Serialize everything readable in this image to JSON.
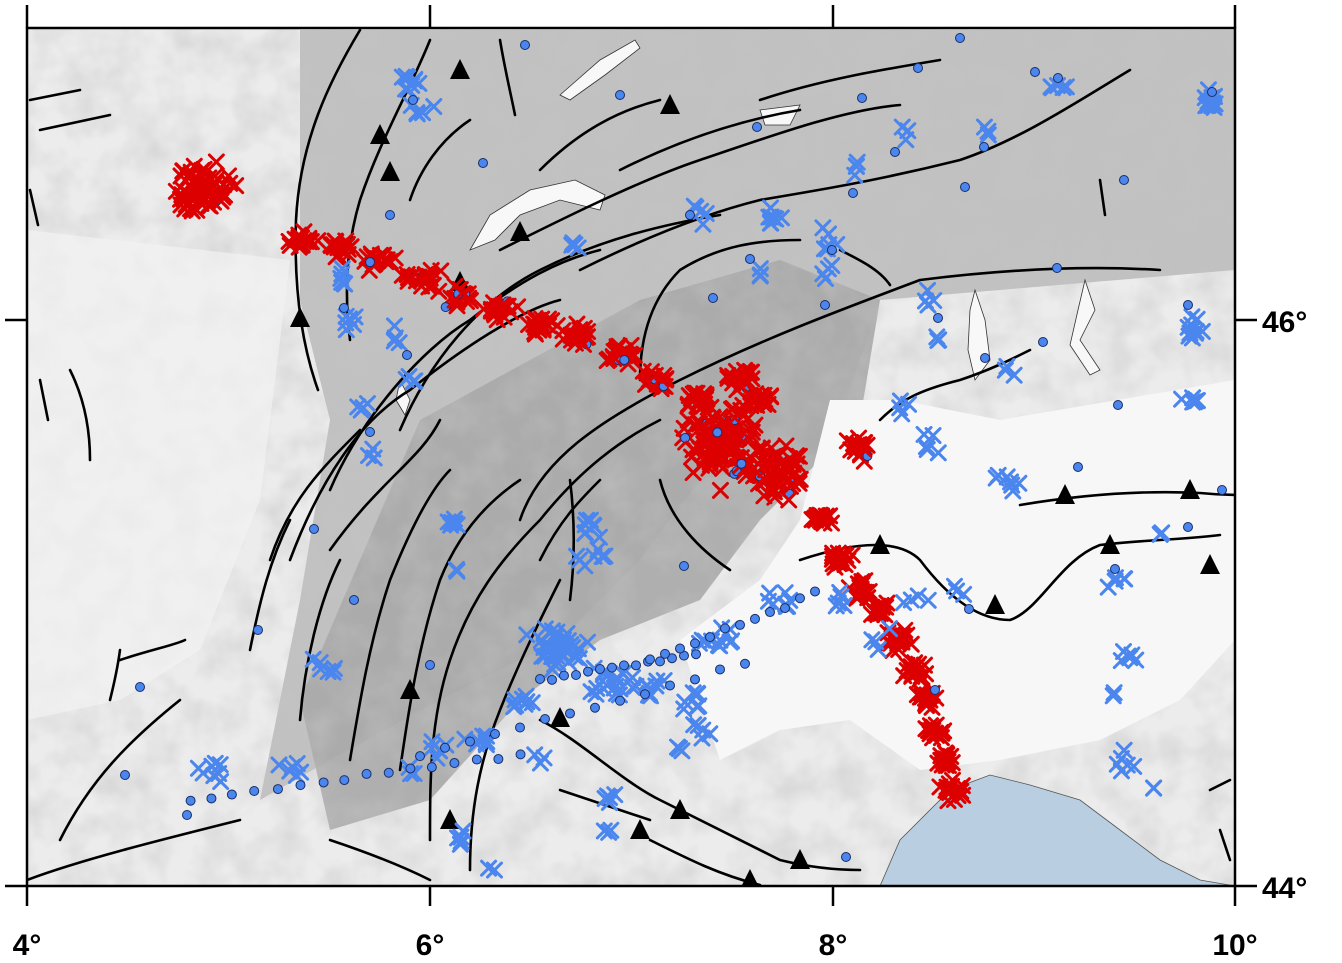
{
  "map": {
    "lon_range": [
      4,
      10
    ],
    "lat_range": [
      44,
      46.57
    ],
    "frame_color": "#000000",
    "background_relief": "grey shaded relief (Western Alps / Jura)",
    "sea_color": "#b9cee0",
    "plain_color": "#f7f7f7",
    "x_ticks": [
      {
        "value": 4,
        "label": "4°"
      },
      {
        "value": 6,
        "label": "6°"
      },
      {
        "value": 8,
        "label": "8°"
      },
      {
        "value": 10,
        "label": "10°"
      }
    ],
    "y_ticks": [
      {
        "value": 46,
        "label": "46°"
      },
      {
        "value": 44,
        "label": "44°"
      }
    ],
    "symbol_colors": {
      "red": "#dd0000",
      "blue": "#4a86ee",
      "circle_edge": "#1a2e66",
      "fault": "#000000"
    },
    "symbols": [
      "x-mark",
      "filled-circle",
      "thrust-triangle"
    ]
  }
}
